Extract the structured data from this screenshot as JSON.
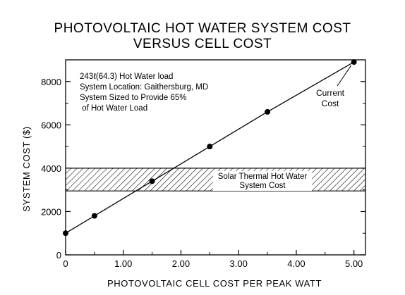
{
  "chart_data": {
    "type": "line",
    "title": "PHOTOVOLTAIC HOT WATER SYSTEM COST",
    "subtitle": "VERSUS CELL COST",
    "xlabel": "PHOTOVOLTAIC CELL COST PER PEAK WATT",
    "ylabel": "SYSTEM COST ($)",
    "xlim": [
      0,
      5.2
    ],
    "ylim": [
      0,
      9000
    ],
    "x_ticks": [
      "0",
      "1.00",
      "2.00",
      "3.00",
      "4.00",
      "5.00"
    ],
    "x_tick_values": [
      0,
      1,
      2,
      3,
      4,
      5
    ],
    "y_ticks": [
      "0",
      "2000",
      "4000",
      "6000",
      "8000"
    ],
    "y_tick_values": [
      0,
      2000,
      4000,
      6000,
      8000
    ],
    "grid": false,
    "series": [
      {
        "x": [
          0,
          0.5,
          1.5,
          2.5,
          3.5,
          5.0
        ],
        "y": [
          1000,
          1800,
          3400,
          5000,
          6600,
          8900
        ]
      }
    ],
    "band": {
      "label_line1": "Solar Thermal Hot Water",
      "label_line2": "System Cost",
      "y_range": [
        2950,
        4000
      ]
    },
    "notes": [
      "243ℓ(64.3) Hot Water load",
      "System Location: Gaithersburg, MD",
      "System Sized to Provide 65%",
      " of Hot Water Load"
    ],
    "annotation": {
      "line1": "Current",
      "line2": "Cost",
      "x": 5.0,
      "y": 8900
    }
  }
}
